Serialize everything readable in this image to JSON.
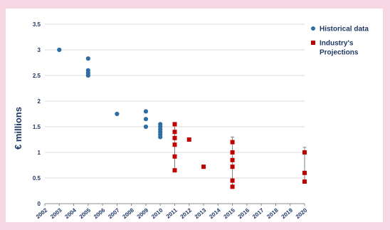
{
  "chart_data": {
    "type": "scatter",
    "title": "",
    "xlabel": "",
    "ylabel": "€ millions",
    "xlim": [
      2002,
      2020
    ],
    "ylim": [
      0,
      3.5
    ],
    "x_ticks": [
      "2002",
      "2003",
      "2004",
      "2005",
      "2006",
      "2007",
      "2008",
      "2009",
      "2010",
      "2011",
      "2012",
      "2013",
      "2014",
      "2015",
      "2016",
      "2017",
      "2018",
      "2019",
      "2020"
    ],
    "y_ticks": [
      "0",
      "0.5",
      "1",
      "1.5",
      "2",
      "2.5",
      "3",
      "3.5"
    ],
    "grid": "horizontal",
    "legend_position": "right",
    "series": [
      {
        "name": "Historical data",
        "marker": "circle",
        "color": "#2e6da4",
        "points": [
          {
            "x": 2003,
            "y": 3.0
          },
          {
            "x": 2005,
            "y": 2.83
          },
          {
            "x": 2005,
            "y": 2.6
          },
          {
            "x": 2005,
            "y": 2.55
          },
          {
            "x": 2005,
            "y": 2.5
          },
          {
            "x": 2007,
            "y": 1.75
          },
          {
            "x": 2009,
            "y": 1.8
          },
          {
            "x": 2009,
            "y": 1.65
          },
          {
            "x": 2009,
            "y": 1.5
          },
          {
            "x": 2010,
            "y": 1.55
          },
          {
            "x": 2010,
            "y": 1.5
          },
          {
            "x": 2010,
            "y": 1.45
          },
          {
            "x": 2010,
            "y": 1.4
          },
          {
            "x": 2010,
            "y": 1.35
          },
          {
            "x": 2010,
            "y": 1.3
          }
        ]
      },
      {
        "name": "Industry's Projections",
        "marker": "square",
        "color": "#c00000",
        "points": [
          {
            "x": 2011,
            "y": 1.55
          },
          {
            "x": 2011,
            "y": 1.4
          },
          {
            "x": 2011,
            "y": 1.28
          },
          {
            "x": 2011,
            "y": 1.15
          },
          {
            "x": 2011,
            "y": 0.92
          },
          {
            "x": 2011,
            "y": 0.65
          },
          {
            "x": 2012,
            "y": 1.25
          },
          {
            "x": 2013,
            "y": 0.72
          },
          {
            "x": 2015,
            "y": 1.2
          },
          {
            "x": 2015,
            "y": 1.0
          },
          {
            "x": 2015,
            "y": 0.85
          },
          {
            "x": 2015,
            "y": 0.72
          },
          {
            "x": 2015,
            "y": 0.45
          },
          {
            "x": 2015,
            "y": 0.33
          },
          {
            "x": 2020,
            "y": 1.0
          },
          {
            "x": 2020,
            "y": 0.6
          },
          {
            "x": 2020,
            "y": 0.43
          }
        ],
        "error_bars": [
          {
            "x": 2011,
            "low": 0.65,
            "high": 1.55
          },
          {
            "x": 2015,
            "low": 0.33,
            "high": 1.3
          },
          {
            "x": 2020,
            "low": 0.43,
            "high": 1.1
          }
        ]
      }
    ]
  }
}
